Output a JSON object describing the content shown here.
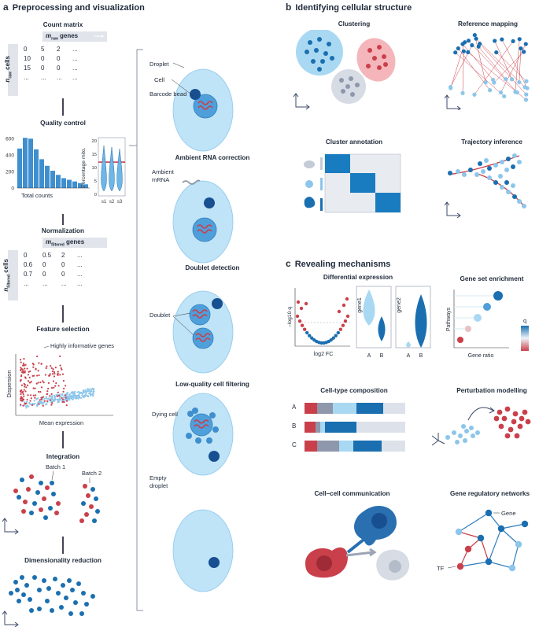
{
  "section_a": {
    "letter": "a",
    "title": "Preprocessing and visualization"
  },
  "section_b": {
    "letter": "b",
    "title": "Identifying cellular structure"
  },
  "section_c": {
    "letter": "c",
    "title": "Revealing mechanisms"
  },
  "count_matrix": {
    "title": "Count matrix",
    "genes_label": "genes",
    "genes_var": "m",
    "genes_sub": "raw",
    "cells_label": "cells",
    "cells_var": "n",
    "cells_sub": "raw",
    "rows": [
      [
        "0",
        "5",
        "2",
        "..."
      ],
      [
        "10",
        "0",
        "0",
        "..."
      ],
      [
        "15",
        "0",
        "0",
        "..."
      ],
      [
        "...",
        "...",
        "...",
        "..."
      ]
    ]
  },
  "quality_control": {
    "title": "Quality control",
    "hist_yticks": [
      "600",
      "400",
      "200",
      "0"
    ],
    "hist_xlabel": "Total counts",
    "hist_values": [
      480,
      610,
      600,
      470,
      350,
      270,
      210,
      160,
      120,
      100,
      80,
      60,
      45
    ],
    "violin_ylabel": "Percentage mito.",
    "violin_yticks": [
      "20",
      "15",
      "10",
      "5",
      "0"
    ],
    "violin_xticks": [
      "s1",
      "s2",
      "s3"
    ]
  },
  "normalization": {
    "title": "Normalization",
    "genes_label": "genes",
    "genes_var": "m",
    "genes_sub": "filtered",
    "cells_label": "cells",
    "cells_var": "n",
    "cells_sub": "filtered",
    "rows": [
      [
        "0",
        "0.5",
        "2",
        "..."
      ],
      [
        "0.6",
        "0",
        "0",
        "..."
      ],
      [
        "0.7",
        "0",
        "0",
        "..."
      ],
      [
        "...",
        "...",
        "...",
        "..."
      ]
    ]
  },
  "feature_selection": {
    "title": "Feature selection",
    "annotation": "Highly informative genes",
    "ylabel": "Dispersion",
    "xlabel": "Mean expression"
  },
  "integration": {
    "title": "Integration",
    "batch1": "Batch 1",
    "batch2": "Batch 2"
  },
  "dim_reduction": {
    "title": "Dimensionality reduction"
  },
  "droplets": {
    "droplet_label": "Droplet",
    "cell_label": "Cell",
    "bead_label": "Barcode bead",
    "ambient_title": "Ambient RNA correction",
    "ambient_label": "Ambient mRNA",
    "doublet_title": "Doublet detection",
    "doublet_label": "Doublet",
    "lowq_title": "Low-quality cell filtering",
    "dying_label": "Dying cell",
    "empty_label": "Empty droplet"
  },
  "structure": {
    "clustering": "Clustering",
    "reference_mapping": "Reference mapping",
    "cluster_annotation": "Cluster annotation",
    "trajectory_inference": "Trajectory inference"
  },
  "mechanisms": {
    "differential_expression": "Differential expression",
    "de_ylabel": "–log10 q",
    "de_xlabel": "log2 FC",
    "gene1": "gene1",
    "gene2": "gene2",
    "violin_x": [
      "A",
      "B"
    ],
    "gene_set_enrichment": "Gene set enrichment",
    "gse_ylabel": "Pathways",
    "gse_xlabel": "Gene ratio",
    "gse_legend": "q",
    "cell_type_composition": "Cell-type composition",
    "composition_rows": [
      "A",
      "B",
      "C"
    ],
    "perturbation_modelling": "Perturbation modelling",
    "cell_cell_communication": "Cell–cell communication",
    "gene_regulatory_networks": "Gene regulatory networks",
    "grn_gene_label": "Gene",
    "grn_tf_label": "TF"
  },
  "colors": {
    "dark_blue": "#1a6fb0",
    "mid_blue": "#5aa9dd",
    "light_blue": "#a9d8f2",
    "red": "#c9404b",
    "light_red": "#f0a0a6",
    "grey": "#8e97ab",
    "navy": "#1f2a3a"
  }
}
